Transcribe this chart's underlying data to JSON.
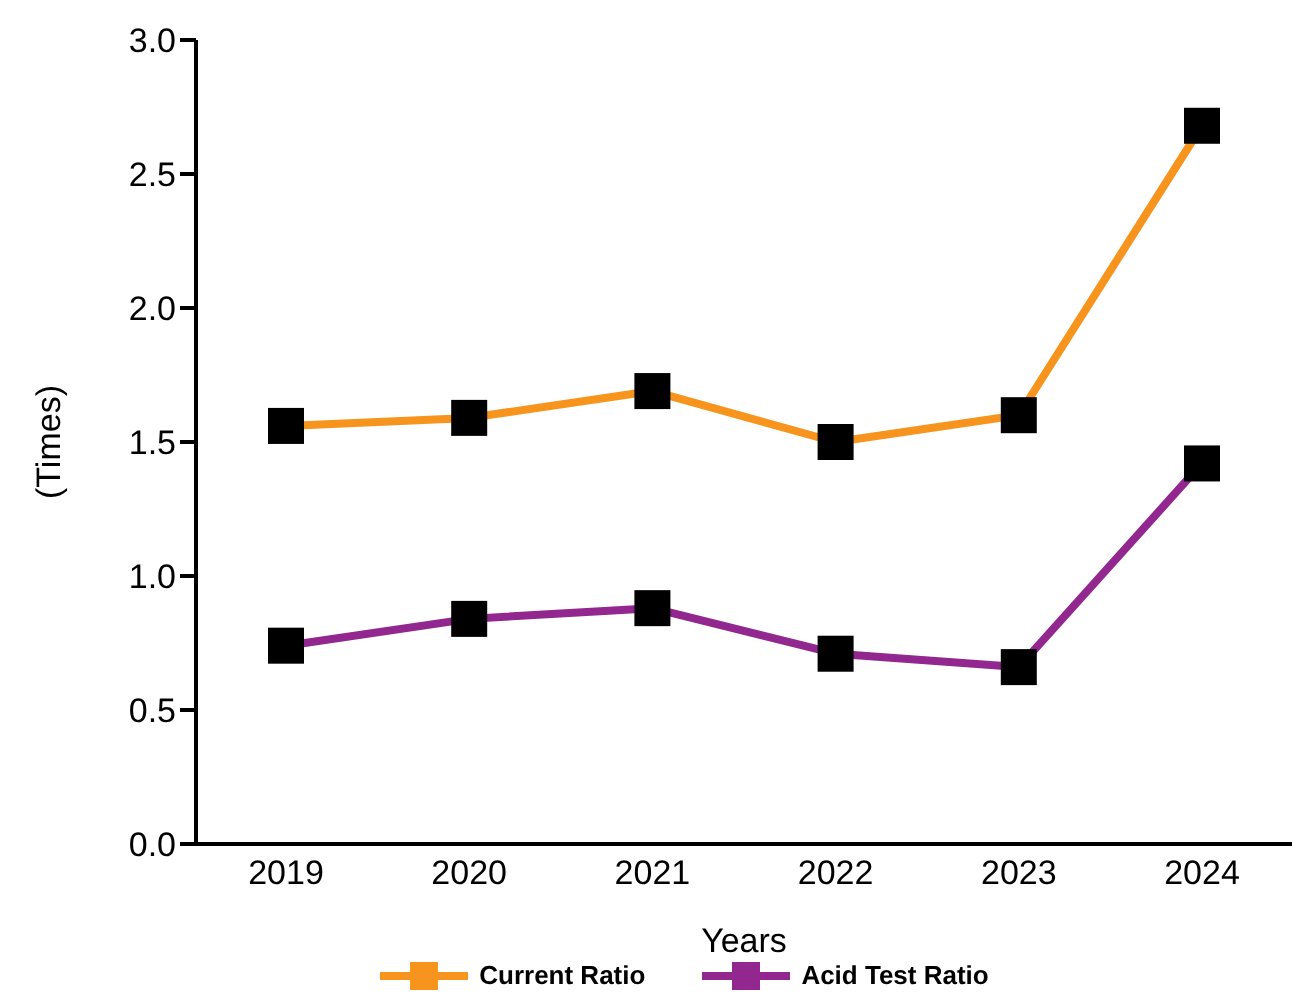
{
  "chart_data": {
    "type": "line",
    "xlabel": "Years",
    "ylabel": "(Times)",
    "categories": [
      "2019",
      "2020",
      "2021",
      "2022",
      "2023",
      "2024"
    ],
    "series": [
      {
        "name": "Current Ratio",
        "color": "#f7941d",
        "values": [
          1.56,
          1.59,
          1.69,
          1.5,
          1.6,
          2.68
        ]
      },
      {
        "name": "Acid Test Ratio",
        "color": "#92278f",
        "values": [
          0.74,
          0.84,
          0.88,
          0.71,
          0.66,
          1.42
        ]
      }
    ],
    "ylim": [
      0,
      3
    ],
    "yticks": [
      {
        "value": 0,
        "label": "0.0"
      },
      0.5,
      {
        "value": 1,
        "label": "1.0"
      },
      1.5,
      {
        "value": 2,
        "label": "2.0"
      },
      2.5,
      {
        "value": 3,
        "label": "3.0"
      }
    ],
    "grid": false,
    "legend": "bottom",
    "marker": "square"
  }
}
